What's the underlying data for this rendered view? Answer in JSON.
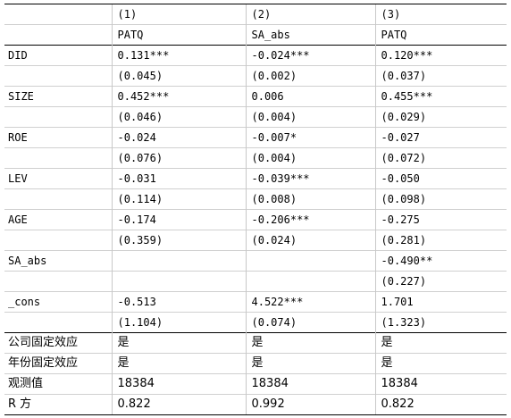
{
  "table": {
    "header": {
      "models": [
        "(1)",
        "(2)",
        "(3)"
      ],
      "depvars": [
        "PATQ",
        "SA_abs",
        "PATQ"
      ]
    },
    "coef_rows": [
      {
        "var": "DID",
        "coef": [
          "0.131***",
          "-0.024***",
          "0.120***"
        ],
        "se": [
          "(0.045)",
          "(0.002)",
          "(0.037)"
        ]
      },
      {
        "var": "SIZE",
        "coef": [
          "0.452***",
          "0.006",
          "0.455***"
        ],
        "se": [
          "(0.046)",
          "(0.004)",
          "(0.029)"
        ]
      },
      {
        "var": "ROE",
        "coef": [
          "-0.024",
          "-0.007*",
          "-0.027"
        ],
        "se": [
          "(0.076)",
          "(0.004)",
          "(0.072)"
        ]
      },
      {
        "var": "LEV",
        "coef": [
          "-0.031",
          "-0.039***",
          "-0.050"
        ],
        "se": [
          "(0.114)",
          "(0.008)",
          "(0.098)"
        ]
      },
      {
        "var": "AGE",
        "coef": [
          "-0.174",
          "-0.206***",
          "-0.275"
        ],
        "se": [
          "(0.359)",
          "(0.024)",
          "(0.281)"
        ]
      },
      {
        "var": "SA_abs",
        "coef": [
          "",
          "",
          "-0.490**"
        ],
        "se": [
          "",
          "",
          "(0.227)"
        ]
      },
      {
        "var": "_cons",
        "coef": [
          "-0.513",
          "4.522***",
          "1.701"
        ],
        "se": [
          "(1.104)",
          "(0.074)",
          "(1.323)"
        ]
      }
    ],
    "footer_rows": [
      {
        "label": "公司固定效应",
        "values": [
          "是",
          "是",
          "是"
        ]
      },
      {
        "label": "年份固定效应",
        "values": [
          "是",
          "是",
          "是"
        ]
      },
      {
        "label": "观测值",
        "values": [
          "18384",
          "18384",
          "18384"
        ]
      },
      {
        "label": "R 方",
        "values": [
          "0.822",
          "0.992",
          "0.822"
        ]
      }
    ]
  }
}
